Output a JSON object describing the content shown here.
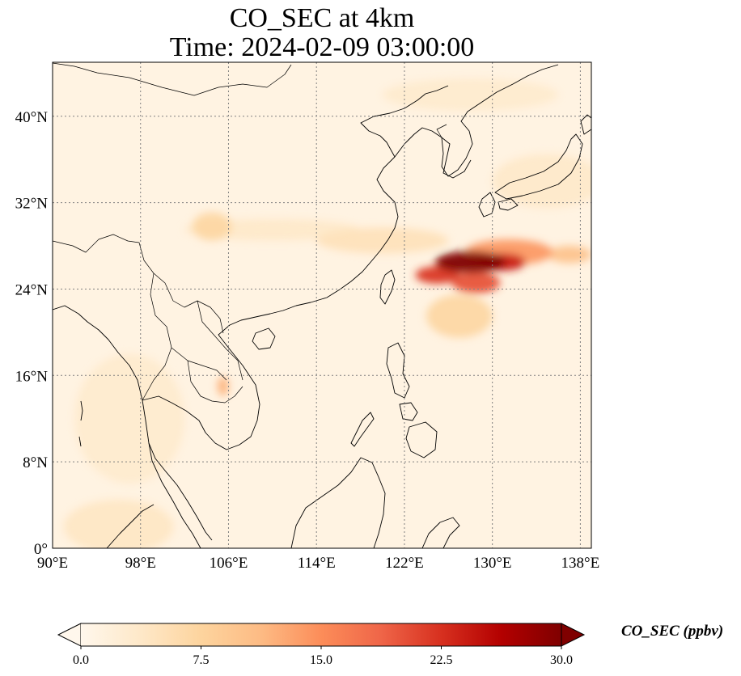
{
  "figure": {
    "title_line1": "CO_SEC at 4km",
    "title_line2": "Time: 2024-02-09 03:00:00"
  },
  "map": {
    "projection": "PlateCarree",
    "extent": {
      "lon_min": 90,
      "lon_max": 139,
      "lat_min": 0,
      "lat_max": 45
    },
    "grid": true,
    "grid_style": "dotted",
    "grid_color": "#808080",
    "coastline_color": "#000000",
    "longitude_ticks": [
      {
        "value": 90,
        "label": "90°E"
      },
      {
        "value": 98,
        "label": "98°E"
      },
      {
        "value": 106,
        "label": "106°E"
      },
      {
        "value": 114,
        "label": "114°E"
      },
      {
        "value": 122,
        "label": "122°E"
      },
      {
        "value": 130,
        "label": "130°E"
      },
      {
        "value": 138,
        "label": "138°E"
      }
    ],
    "latitude_ticks": [
      {
        "value": 0,
        "label": "0°"
      },
      {
        "value": 8,
        "label": "8°N"
      },
      {
        "value": 16,
        "label": "16°N"
      },
      {
        "value": 24,
        "label": "24°N"
      },
      {
        "value": 32,
        "label": "32°N"
      },
      {
        "value": 40,
        "label": "40°N"
      }
    ]
  },
  "chart_data": {
    "type": "heatmap",
    "variable": "CO_SEC",
    "level": "4km",
    "time": "2024-02-09 03:00:00",
    "units": "ppbv",
    "colormap": "OrRd",
    "vmin": 0.0,
    "vmax": 30.0,
    "colorbar_extend": "both",
    "colorbar_ticks": [
      {
        "value": 0.0,
        "label": "0.0"
      },
      {
        "value": 7.5,
        "label": "7.5"
      },
      {
        "value": 15.0,
        "label": "15.0"
      },
      {
        "value": 22.5,
        "label": "22.5"
      },
      {
        "value": 30.0,
        "label": "30.0"
      }
    ],
    "colorbar_label": "CO_SEC (ppbv)",
    "background_level": 1.0,
    "features": [
      {
        "lon": 128.0,
        "lat": 26.5,
        "value": 30.0,
        "rx": 3.2,
        "ry": 1.0
      },
      {
        "lon": 125.0,
        "lat": 25.3,
        "value": 22.0,
        "rx": 2.0,
        "ry": 0.8
      },
      {
        "lon": 131.0,
        "lat": 26.5,
        "value": 24.0,
        "rx": 2.0,
        "ry": 0.8
      },
      {
        "lon": 128.5,
        "lat": 24.6,
        "value": 20.0,
        "rx": 2.2,
        "ry": 1.0
      },
      {
        "lon": 131.5,
        "lat": 27.4,
        "value": 14.0,
        "rx": 4.0,
        "ry": 1.2
      },
      {
        "lon": 137.0,
        "lat": 27.2,
        "value": 10.0,
        "rx": 2.0,
        "ry": 0.8
      },
      {
        "lon": 120.0,
        "lat": 28.5,
        "value": 5.0,
        "rx": 6.0,
        "ry": 1.2
      },
      {
        "lon": 110.0,
        "lat": 29.5,
        "value": 3.5,
        "rx": 8.0,
        "ry": 1.0
      },
      {
        "lon": 104.5,
        "lat": 29.8,
        "value": 7.0,
        "rx": 1.8,
        "ry": 1.3
      },
      {
        "lon": 135.0,
        "lat": 34.0,
        "value": 3.5,
        "rx": 5.0,
        "ry": 2.5
      },
      {
        "lon": 127.0,
        "lat": 21.5,
        "value": 7.0,
        "rx": 3.0,
        "ry": 2.0
      },
      {
        "lon": 105.5,
        "lat": 15.0,
        "value": 12.0,
        "rx": 0.5,
        "ry": 0.9
      },
      {
        "lon": 128.0,
        "lat": 42.0,
        "value": 3.0,
        "rx": 8.0,
        "ry": 1.5
      },
      {
        "lon": 97.0,
        "lat": 12.0,
        "value": 3.0,
        "rx": 5.0,
        "ry": 6.0
      },
      {
        "lon": 96.0,
        "lat": 2.0,
        "value": 4.0,
        "rx": 5.0,
        "ry": 2.5
      }
    ]
  },
  "colors": {
    "cmap_stops": [
      "#fff7ec",
      "#fee8c8",
      "#fdd49e",
      "#fdbb84",
      "#fc8d59",
      "#ef6548",
      "#d7301f",
      "#b30000",
      "#7f0000"
    ]
  }
}
